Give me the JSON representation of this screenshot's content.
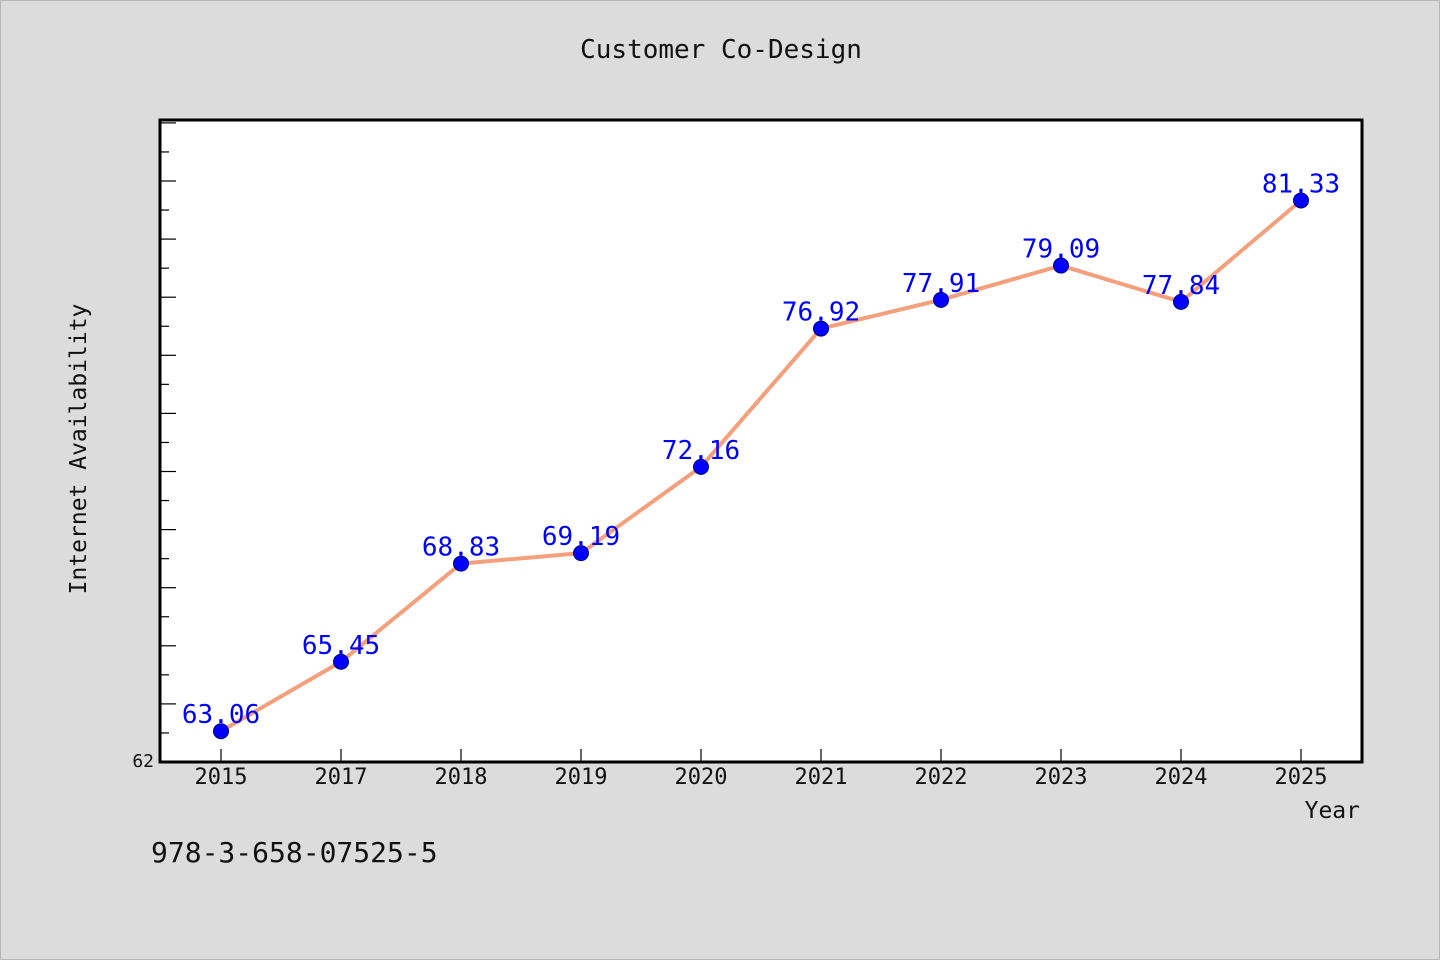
{
  "chart_data": {
    "type": "line",
    "title": "Customer Co-Design",
    "xlabel": "Year",
    "ylabel": "Internet Availability",
    "categories": [
      "2015",
      "2017",
      "2018",
      "2019",
      "2020",
      "2021",
      "2022",
      "2023",
      "2024",
      "2025"
    ],
    "series": [
      {
        "values": [
          63.06,
          65.45,
          68.83,
          69.19,
          72.16,
          76.92,
          77.91,
          79.09,
          77.84,
          81.33
        ]
      }
    ],
    "data_labels": [
      "63.06",
      "65.45",
      "68.83",
      "69.19",
      "72.16",
      "76.92",
      "77.91",
      "79.09",
      "77.84",
      "81.33"
    ],
    "y_tick_labels": [
      "62"
    ],
    "ylim": [
      62,
      84.1
    ],
    "grid": false,
    "colors": {
      "line": "#f4a07c",
      "marker": "#0000ff",
      "labels": "#0000ff",
      "background": "#dcdcdc",
      "plot_background": "#ffffff"
    }
  },
  "footer_text": "978-3-658-07525-5"
}
